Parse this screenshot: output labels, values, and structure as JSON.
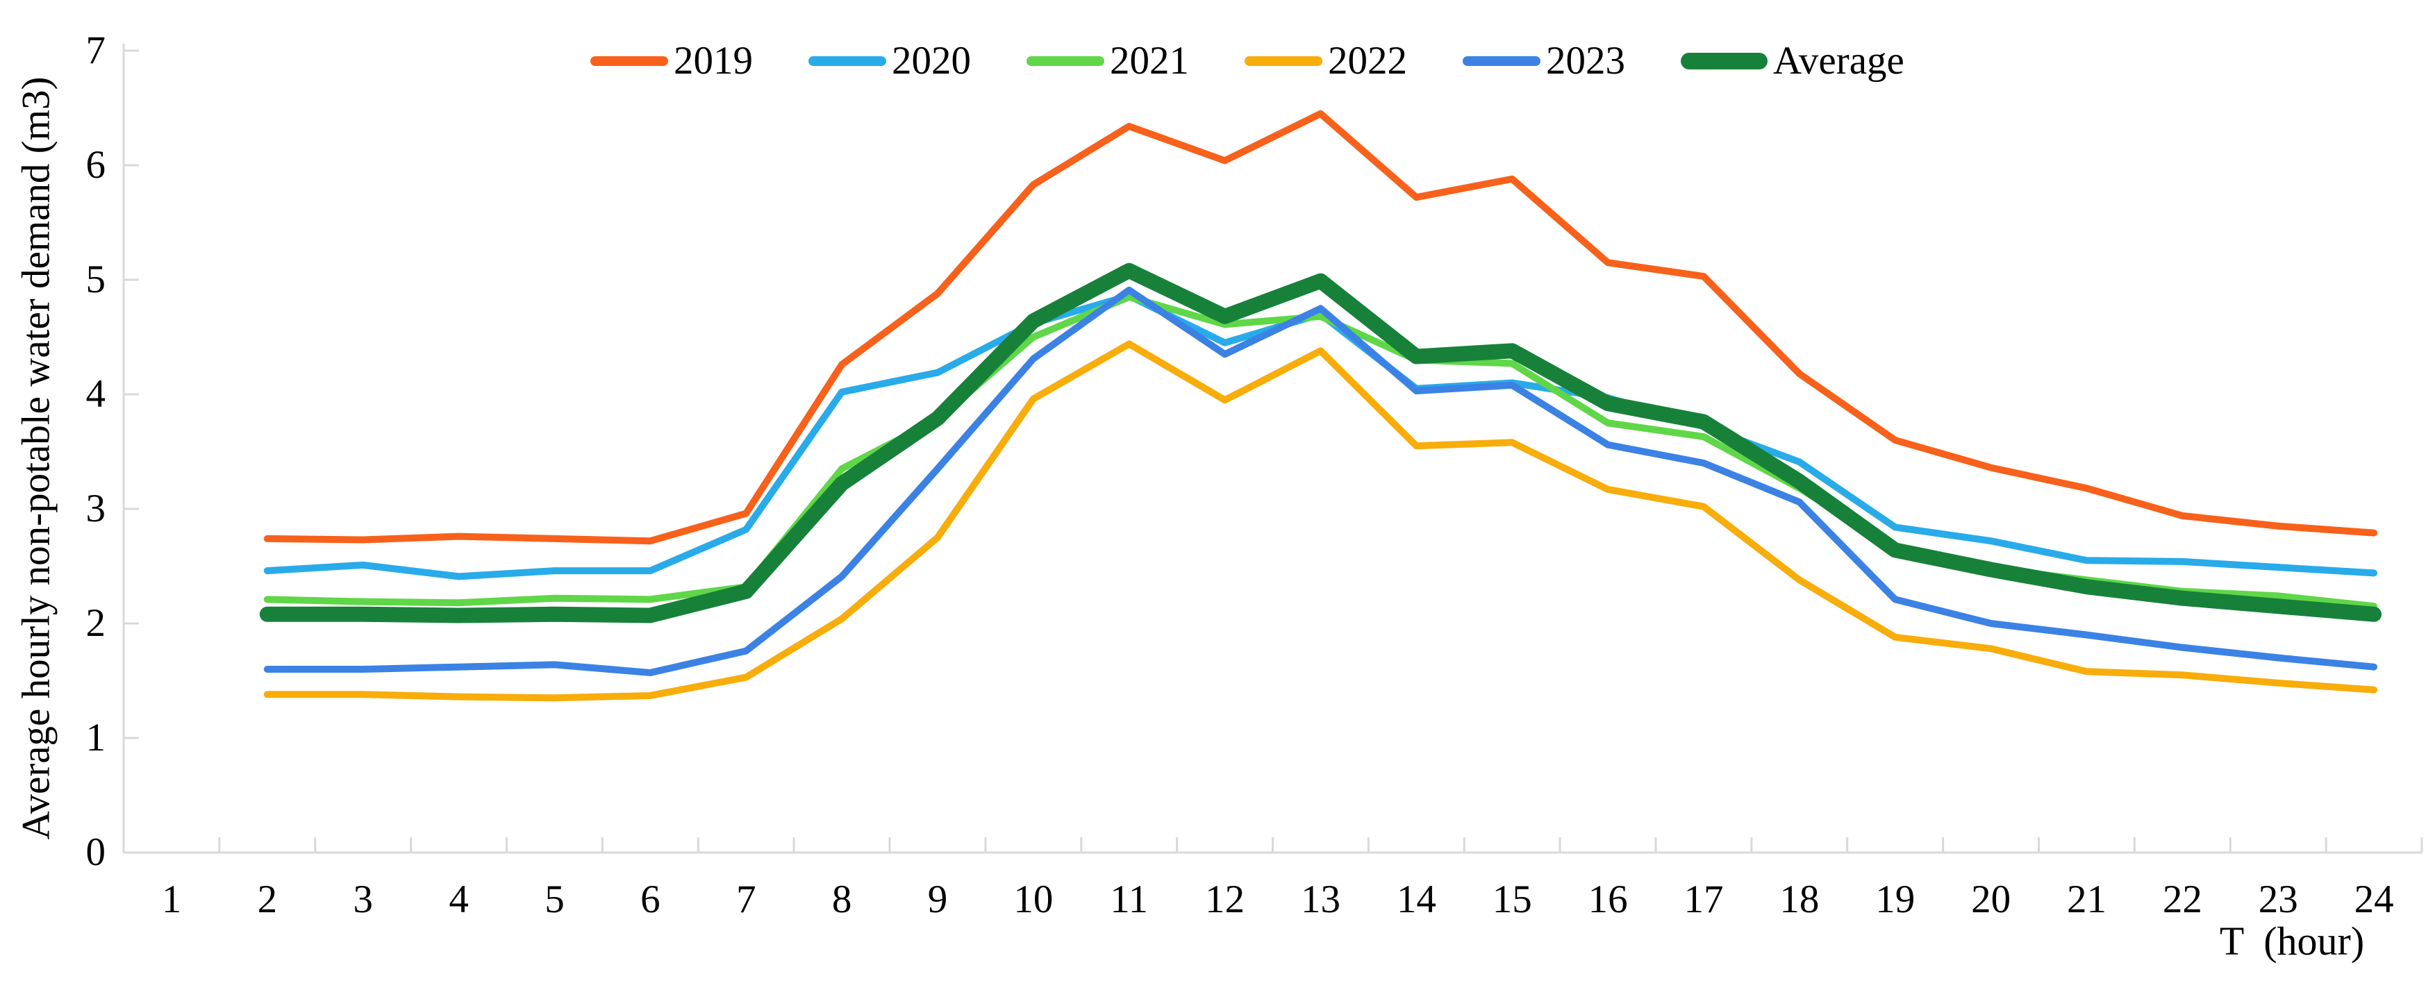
{
  "figure": {
    "background": "#FFFFFF"
  },
  "axis_style": {
    "line_color": "#D9D9D9",
    "tick_color": "#D9D9D9",
    "text_color": "#000000"
  },
  "chart_data": {
    "type": "line",
    "title": "",
    "xlabel": "T  (hour)",
    "ylabel": "Average hourly non-potable water demand (m3)",
    "x": [
      2,
      3,
      4,
      5,
      6,
      7,
      8,
      9,
      10,
      11,
      12,
      13,
      14,
      15,
      16,
      17,
      18,
      19,
      20,
      21,
      22,
      23,
      24
    ],
    "x_ticks": [
      "1",
      "2",
      "3",
      "4",
      "5",
      "6",
      "7",
      "8",
      "9",
      "10",
      "11",
      "12",
      "13",
      "14",
      "15",
      "16",
      "17",
      "18",
      "19",
      "20",
      "21",
      "22",
      "23",
      "24"
    ],
    "y_ticks": [
      "0",
      "1",
      "2",
      "3",
      "4",
      "5",
      "6",
      "7"
    ],
    "ylim": [
      0,
      7
    ],
    "xlim": [
      0.5,
      24.5
    ],
    "grid": false,
    "legend_position": "top",
    "series": [
      {
        "name": "2019",
        "color": "#F8611B",
        "line_width": 10,
        "values": [
          2.74,
          2.73,
          2.76,
          2.74,
          2.72,
          2.96,
          4.26,
          4.88,
          5.83,
          6.34,
          6.04,
          6.45,
          5.72,
          5.88,
          5.15,
          5.03,
          4.18,
          3.6,
          3.36,
          3.18,
          2.94,
          2.85,
          2.79
        ]
      },
      {
        "name": "2020",
        "color": "#29ABE9",
        "line_width": 10,
        "values": [
          2.46,
          2.51,
          2.41,
          2.46,
          2.46,
          2.82,
          4.02,
          4.19,
          4.62,
          4.86,
          4.45,
          4.7,
          4.05,
          4.1,
          3.97,
          3.72,
          3.41,
          2.84,
          2.72,
          2.55,
          2.54,
          2.49,
          2.44
        ]
      },
      {
        "name": "2021",
        "color": "#5FD748",
        "line_width": 10,
        "values": [
          2.21,
          2.19,
          2.18,
          2.22,
          2.21,
          2.32,
          3.35,
          3.78,
          4.5,
          4.85,
          4.61,
          4.68,
          4.3,
          4.27,
          3.75,
          3.63,
          3.18,
          2.66,
          2.48,
          2.38,
          2.28,
          2.24,
          2.15
        ]
      },
      {
        "name": "2022",
        "color": "#F8AD0B",
        "line_width": 10,
        "values": [
          1.38,
          1.38,
          1.36,
          1.35,
          1.37,
          1.53,
          2.04,
          2.75,
          3.96,
          4.44,
          3.95,
          4.38,
          3.55,
          3.58,
          3.17,
          3.02,
          2.38,
          1.88,
          1.78,
          1.58,
          1.55,
          1.48,
          1.42
        ]
      },
      {
        "name": "2023",
        "color": "#3B82E4",
        "line_width": 10,
        "values": [
          1.6,
          1.6,
          1.62,
          1.64,
          1.57,
          1.76,
          2.41,
          3.35,
          4.31,
          4.91,
          4.35,
          4.75,
          4.03,
          4.08,
          3.56,
          3.4,
          3.06,
          2.21,
          2.0,
          1.9,
          1.79,
          1.7,
          1.62
        ]
      },
      {
        "name": "Average",
        "color": "#17813A",
        "line_width": 22,
        "values": [
          2.08,
          2.08,
          2.07,
          2.08,
          2.07,
          2.28,
          3.22,
          3.79,
          4.64,
          5.08,
          4.68,
          4.99,
          4.33,
          4.38,
          3.92,
          3.76,
          3.24,
          2.64,
          2.47,
          2.32,
          2.22,
          2.15,
          2.08
        ]
      }
    ]
  }
}
